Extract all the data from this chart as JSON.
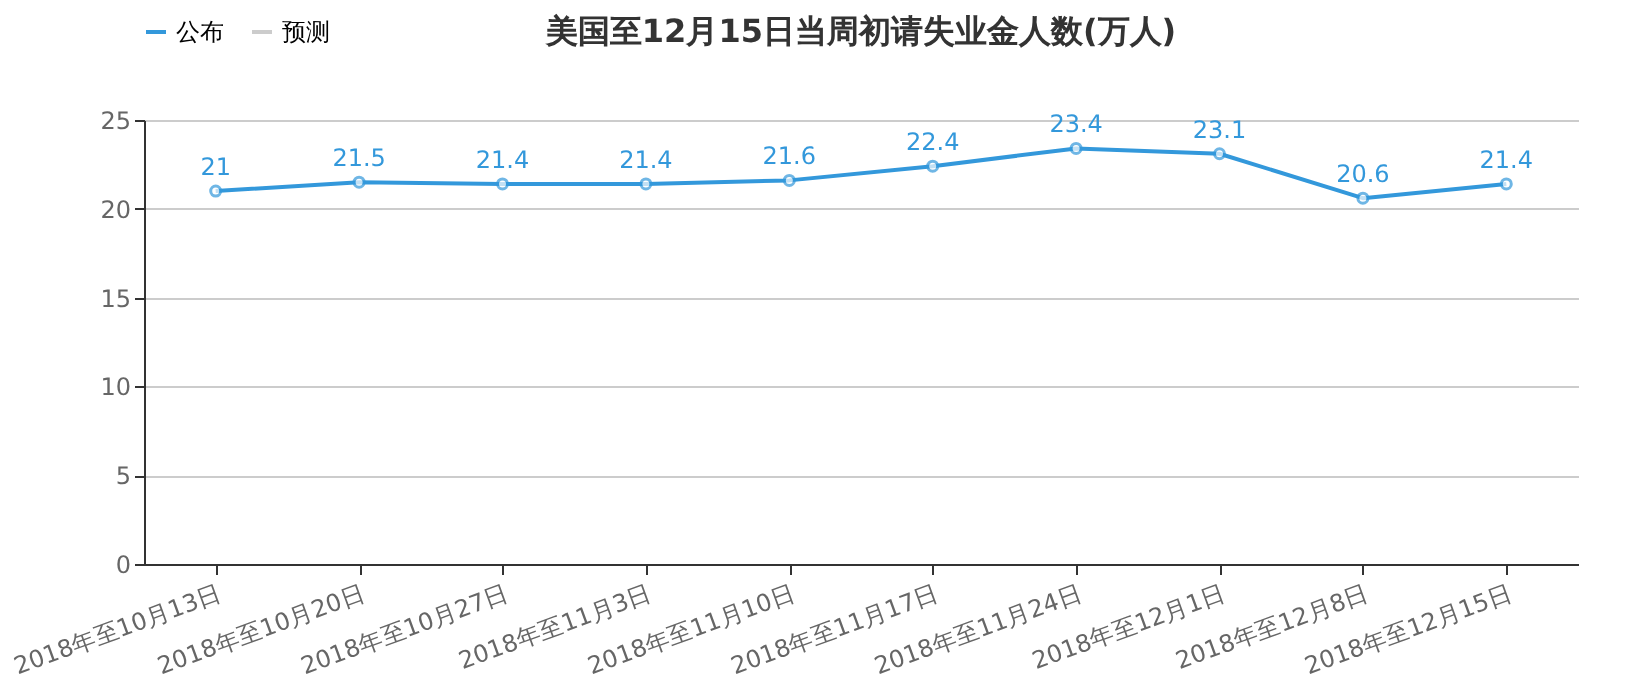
{
  "chart_data": {
    "type": "line",
    "title": "美国至12月15日当周初请失业金人数(万人)",
    "categories": [
      "2018年至10月13日",
      "2018年至10月20日",
      "2018年至10月27日",
      "2018年至11月3日",
      "2018年至11月10日",
      "2018年至11月17日",
      "2018年至11月24日",
      "2018年至12月1日",
      "2018年至12月8日",
      "2018年至12月15日"
    ],
    "series": [
      {
        "name": "公布",
        "color": "#3398db",
        "values": [
          21,
          21.5,
          21.4,
          21.4,
          21.6,
          22.4,
          23.4,
          23.1,
          20.6,
          21.4
        ]
      },
      {
        "name": "预测",
        "color": "#cccccc",
        "values": [
          null,
          null,
          null,
          null,
          null,
          null,
          null,
          null,
          null,
          null
        ]
      }
    ],
    "ylim": [
      0,
      25
    ],
    "yticks": [
      0,
      5,
      10,
      15,
      20,
      25
    ],
    "grid": "y",
    "legend": "top left",
    "marker": "circle",
    "data_labels": true,
    "line_style": "solid"
  }
}
